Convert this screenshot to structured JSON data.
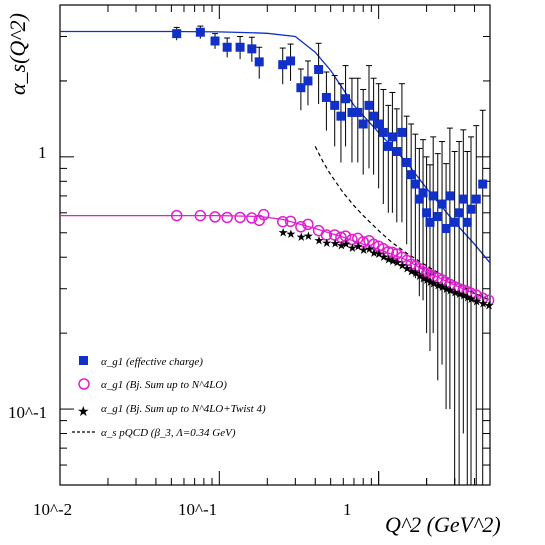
{
  "chart_data": {
    "type": "scatter",
    "xscale": "log",
    "yscale": "log",
    "xlim": [
      0.01,
      5.0
    ],
    "ylim": [
      0.05,
      4.0
    ],
    "xlabel": "Q^2 (GeV^2)",
    "ylabel": "α_s(Q^2)",
    "x_tick_labels": [
      "10^-2",
      "10^-1",
      "1"
    ],
    "y_tick_labels": [
      "10^-1",
      "1"
    ],
    "legend_position": "bottom-left",
    "colors": {
      "effective_charge": "#1030c8",
      "bj_sum": "#e020d0",
      "twist4": "#000000",
      "pqcd": "#000000",
      "frame": "#000000"
    },
    "series": [
      {
        "name": "α_g1 (effective charge)",
        "marker": "filled-square",
        "color": "#1030c8",
        "points": [
          [
            0.054,
            3.08,
            0.18
          ],
          [
            0.076,
            3.12,
            0.18
          ],
          [
            0.094,
            2.88,
            0.2
          ],
          [
            0.112,
            2.72,
            0.24
          ],
          [
            0.135,
            2.72,
            0.28
          ],
          [
            0.16,
            2.68,
            0.3
          ],
          [
            0.178,
            2.38,
            0.34
          ],
          [
            0.25,
            2.32,
            0.38
          ],
          [
            0.28,
            2.4,
            0.4
          ],
          [
            0.325,
            1.88,
            0.35
          ],
          [
            0.36,
            2.0,
            0.4
          ],
          [
            0.42,
            2.22,
            0.6
          ],
          [
            0.47,
            1.72,
            0.45
          ],
          [
            0.53,
            1.6,
            0.5
          ],
          [
            0.58,
            1.45,
            0.5
          ],
          [
            0.62,
            1.7,
            0.6
          ],
          [
            0.68,
            1.5,
            0.55
          ],
          [
            0.74,
            1.5,
            0.55
          ],
          [
            0.8,
            1.35,
            0.5
          ],
          [
            0.87,
            1.6,
            0.7
          ],
          [
            0.93,
            1.45,
            0.6
          ],
          [
            1.0,
            1.35,
            0.6
          ],
          [
            1.07,
            1.25,
            0.6
          ],
          [
            1.15,
            1.1,
            0.5
          ],
          [
            1.22,
            1.2,
            0.6
          ],
          [
            1.3,
            1.05,
            0.5
          ],
          [
            1.4,
            1.25,
            0.7
          ],
          [
            1.5,
            0.95,
            0.5
          ],
          [
            1.6,
            0.85,
            0.5
          ],
          [
            1.7,
            0.78,
            0.45
          ],
          [
            1.8,
            0.68,
            0.4
          ],
          [
            1.9,
            0.72,
            0.45
          ],
          [
            2.0,
            0.6,
            0.4
          ],
          [
            2.1,
            0.55,
            0.38
          ],
          [
            2.2,
            0.7,
            0.5
          ],
          [
            2.35,
            0.58,
            0.45
          ],
          [
            2.5,
            0.65,
            0.5
          ],
          [
            2.65,
            0.52,
            0.42
          ],
          [
            2.8,
            0.7,
            0.6
          ],
          [
            3.0,
            0.55,
            0.5
          ],
          [
            3.2,
            0.6,
            0.55
          ],
          [
            3.4,
            0.68,
            0.6
          ],
          [
            3.6,
            0.55,
            0.5
          ],
          [
            3.8,
            0.62,
            0.58
          ],
          [
            4.1,
            0.68,
            0.65
          ],
          [
            4.5,
            0.78,
            0.75
          ]
        ]
      },
      {
        "name": "α_g1 (Bj. Sum up to N^4LO)",
        "marker": "open-circle",
        "color": "#e020d0",
        "points": [
          [
            0.054,
            0.585
          ],
          [
            0.076,
            0.585
          ],
          [
            0.094,
            0.578
          ],
          [
            0.112,
            0.575
          ],
          [
            0.135,
            0.575
          ],
          [
            0.16,
            0.572
          ],
          [
            0.178,
            0.56
          ],
          [
            0.19,
            0.59
          ],
          [
            0.25,
            0.553
          ],
          [
            0.28,
            0.555
          ],
          [
            0.325,
            0.528
          ],
          [
            0.36,
            0.54
          ],
          [
            0.42,
            0.51
          ],
          [
            0.47,
            0.49
          ],
          [
            0.53,
            0.49
          ],
          [
            0.58,
            0.48
          ],
          [
            0.62,
            0.485
          ],
          [
            0.68,
            0.47
          ],
          [
            0.74,
            0.475
          ],
          [
            0.8,
            0.46
          ],
          [
            0.87,
            0.465
          ],
          [
            0.93,
            0.45
          ],
          [
            1.0,
            0.442
          ],
          [
            1.07,
            0.432
          ],
          [
            1.15,
            0.42
          ],
          [
            1.22,
            0.418
          ],
          [
            1.3,
            0.412
          ],
          [
            1.4,
            0.4
          ],
          [
            1.5,
            0.388
          ],
          [
            1.6,
            0.375
          ],
          [
            1.7,
            0.368
          ],
          [
            1.8,
            0.36
          ],
          [
            1.9,
            0.35
          ],
          [
            2.0,
            0.345
          ],
          [
            2.1,
            0.34
          ],
          [
            2.2,
            0.335
          ],
          [
            2.35,
            0.33
          ],
          [
            2.5,
            0.325
          ],
          [
            2.65,
            0.318
          ],
          [
            2.8,
            0.312
          ],
          [
            3.0,
            0.305
          ],
          [
            3.2,
            0.3
          ],
          [
            3.4,
            0.296
          ],
          [
            3.6,
            0.292
          ],
          [
            3.8,
            0.288
          ],
          [
            4.1,
            0.283
          ],
          [
            4.5,
            0.275
          ],
          [
            4.9,
            0.27
          ]
        ]
      },
      {
        "name": "α_g1 (Bj. Sum up to N^4LO+Twist 4)",
        "marker": "star",
        "color": "#000000",
        "points": [
          [
            0.25,
            0.505
          ],
          [
            0.28,
            0.5
          ],
          [
            0.325,
            0.485
          ],
          [
            0.36,
            0.49
          ],
          [
            0.42,
            0.47
          ],
          [
            0.47,
            0.46
          ],
          [
            0.53,
            0.458
          ],
          [
            0.58,
            0.45
          ],
          [
            0.62,
            0.455
          ],
          [
            0.68,
            0.44
          ],
          [
            0.74,
            0.445
          ],
          [
            0.8,
            0.432
          ],
          [
            0.87,
            0.435
          ],
          [
            0.93,
            0.42
          ],
          [
            1.0,
            0.415
          ],
          [
            1.07,
            0.405
          ],
          [
            1.15,
            0.395
          ],
          [
            1.22,
            0.39
          ],
          [
            1.3,
            0.385
          ],
          [
            1.4,
            0.375
          ],
          [
            1.5,
            0.365
          ],
          [
            1.6,
            0.355
          ],
          [
            1.7,
            0.35
          ],
          [
            1.8,
            0.34
          ],
          [
            1.9,
            0.332
          ],
          [
            2.0,
            0.328
          ],
          [
            2.1,
            0.322
          ],
          [
            2.2,
            0.318
          ],
          [
            2.35,
            0.312
          ],
          [
            2.5,
            0.308
          ],
          [
            2.65,
            0.302
          ],
          [
            2.8,
            0.298
          ],
          [
            3.0,
            0.292
          ],
          [
            3.2,
            0.288
          ],
          [
            3.4,
            0.284
          ],
          [
            3.6,
            0.28
          ],
          [
            3.8,
            0.276
          ],
          [
            4.1,
            0.27
          ],
          [
            4.5,
            0.265
          ],
          [
            4.9,
            0.26
          ]
        ]
      },
      {
        "name": "α_s pQCD (β_3, Λ=0.34 GeV)",
        "marker": "dashed-line",
        "color": "#000000",
        "points": [
          [
            0.4,
            1.1
          ],
          [
            0.45,
            0.95
          ],
          [
            0.5,
            0.85
          ],
          [
            0.6,
            0.72
          ],
          [
            0.7,
            0.64
          ],
          [
            0.8,
            0.585
          ],
          [
            1.0,
            0.51
          ],
          [
            1.2,
            0.46
          ],
          [
            1.5,
            0.415
          ],
          [
            2.0,
            0.37
          ],
          [
            2.5,
            0.34
          ],
          [
            3.0,
            0.318
          ],
          [
            4.0,
            0.288
          ],
          [
            5.0,
            0.27
          ]
        ]
      }
    ],
    "curves": [
      {
        "name": "effective-charge-fit",
        "color": "#1030c8",
        "points": [
          [
            0.01,
            3.14
          ],
          [
            0.05,
            3.14
          ],
          [
            0.1,
            3.13
          ],
          [
            0.15,
            3.11
          ],
          [
            0.2,
            3.09
          ],
          [
            0.3,
            3.0
          ],
          [
            0.4,
            2.6
          ],
          [
            0.5,
            2.2
          ],
          [
            0.7,
            1.6
          ],
          [
            1.0,
            1.25
          ],
          [
            1.5,
            0.95
          ],
          [
            2.0,
            0.75
          ],
          [
            3.0,
            0.55
          ],
          [
            4.0,
            0.45
          ],
          [
            5.0,
            0.38
          ]
        ]
      },
      {
        "name": "bj-sum-fit",
        "color": "#e020d0",
        "points": [
          [
            0.01,
            0.585
          ],
          [
            0.1,
            0.585
          ],
          [
            0.18,
            0.58
          ],
          [
            0.25,
            0.565
          ],
          [
            0.4,
            0.52
          ],
          [
            0.6,
            0.48
          ],
          [
            0.8,
            0.45
          ],
          [
            1.0,
            0.43
          ],
          [
            1.5,
            0.39
          ],
          [
            2.0,
            0.35
          ],
          [
            3.0,
            0.31
          ],
          [
            5.0,
            0.27
          ]
        ]
      }
    ]
  }
}
